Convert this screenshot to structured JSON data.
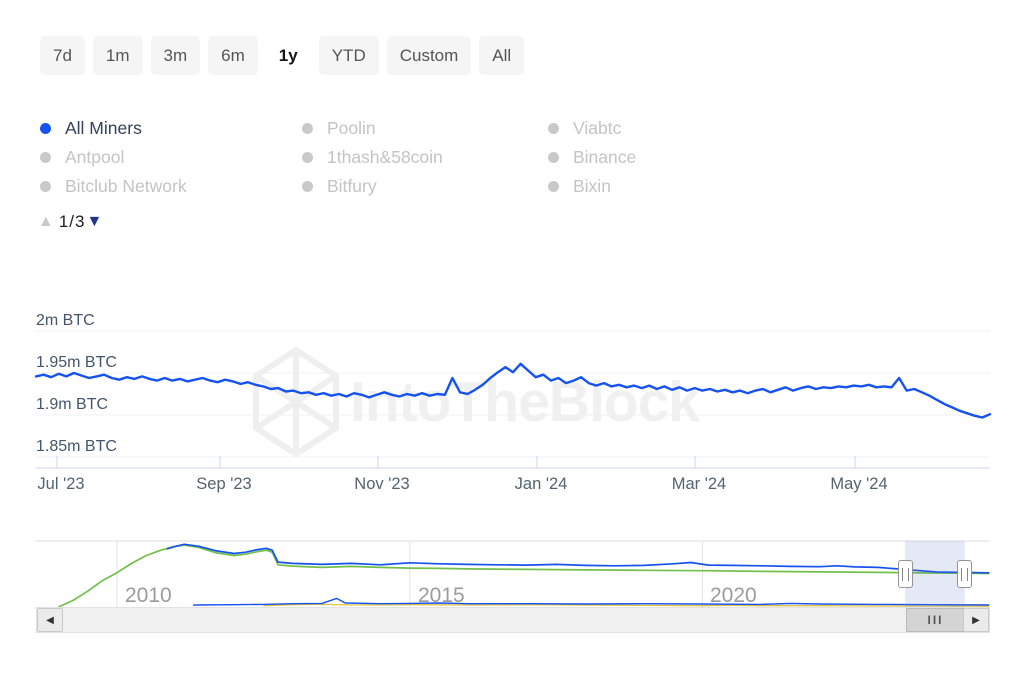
{
  "time_ranges": {
    "items": [
      {
        "label": "7d",
        "selected": false
      },
      {
        "label": "1m",
        "selected": false
      },
      {
        "label": "3m",
        "selected": false
      },
      {
        "label": "6m",
        "selected": false
      },
      {
        "label": "1y",
        "selected": true
      },
      {
        "label": "YTD",
        "selected": false
      },
      {
        "label": "Custom",
        "selected": false
      },
      {
        "label": "All",
        "selected": false
      }
    ]
  },
  "legend": {
    "page_indicator": "1/3",
    "items": [
      {
        "label": "All Miners",
        "active": true
      },
      {
        "label": "Poolin",
        "active": false
      },
      {
        "label": "Viabtc",
        "active": false
      },
      {
        "label": "Antpool",
        "active": false
      },
      {
        "label": "1thash&58coin",
        "active": false
      },
      {
        "label": "Binance",
        "active": false
      },
      {
        "label": "Bitclub Network",
        "active": false
      },
      {
        "label": "Bitfury",
        "active": false
      },
      {
        "label": "Bixin",
        "active": false
      }
    ]
  },
  "icons": {
    "page_up": "▲",
    "page_down": "▼",
    "scroll_left": "◀",
    "scroll_right": "▶",
    "thumb_grip": "III"
  },
  "watermark": {
    "text": "IntoTheBlock"
  },
  "colors": {
    "accent_blue": "#1652f0",
    "nav_green": "#72bf4b",
    "nav_yellow": "#e0c040",
    "inactive_gray": "#c9c9c9",
    "selection_fill": "rgba(105,134,197,0.18)",
    "gridline": "#eef0f3",
    "axis_line": "#ccd6eb"
  },
  "chart_data": [
    {
      "type": "line",
      "id": "main-chart",
      "unit": "m BTC",
      "ytick_labels": [
        "2m BTC",
        "1.95m BTC",
        "1.9m BTC",
        "1.85m BTC"
      ],
      "ytick_values": [
        2.0,
        1.95,
        1.9,
        1.85
      ],
      "ylim": [
        1.843,
        2.013
      ],
      "xtick_labels": [
        "Jul '23",
        "Sep '23",
        "Nov '23",
        "Jan '24",
        "Mar '24",
        "May '24"
      ],
      "grid": "horizontal",
      "legend_position": "top-left",
      "series": [
        {
          "name": "All Miners",
          "color": "#1652f0",
          "values": [
            1.946,
            1.948,
            1.945,
            1.949,
            1.946,
            1.95,
            1.947,
            1.944,
            1.946,
            1.948,
            1.944,
            1.942,
            1.945,
            1.943,
            1.946,
            1.943,
            1.941,
            1.944,
            1.941,
            1.943,
            1.94,
            1.942,
            1.944,
            1.941,
            1.939,
            1.942,
            1.94,
            1.937,
            1.939,
            1.936,
            1.934,
            1.931,
            1.932,
            1.928,
            1.929,
            1.926,
            1.927,
            1.924,
            1.926,
            1.923,
            1.925,
            1.922,
            1.926,
            1.924,
            1.921,
            1.924,
            1.927,
            1.924,
            1.922,
            1.925,
            1.923,
            1.926,
            1.923,
            1.925,
            1.924,
            1.944,
            1.927,
            1.925,
            1.93,
            1.936,
            1.944,
            1.951,
            1.957,
            1.951,
            1.961,
            1.953,
            1.945,
            1.948,
            1.941,
            1.944,
            1.938,
            1.941,
            1.945,
            1.938,
            1.935,
            1.938,
            1.934,
            1.936,
            1.933,
            1.935,
            1.932,
            1.935,
            1.931,
            1.934,
            1.93,
            1.933,
            1.929,
            1.932,
            1.929,
            1.931,
            1.928,
            1.93,
            1.927,
            1.929,
            1.926,
            1.929,
            1.931,
            1.927,
            1.93,
            1.933,
            1.929,
            1.932,
            1.934,
            1.931,
            1.933,
            1.932,
            1.934,
            1.933,
            1.935,
            1.934,
            1.936,
            1.933,
            1.934,
            1.933,
            1.944,
            1.929,
            1.931,
            1.927,
            1.923,
            1.918,
            1.913,
            1.909,
            1.905,
            1.902,
            1.899,
            1.897,
            1.901
          ]
        }
      ]
    },
    {
      "type": "line",
      "id": "navigator",
      "xtick_labels": [
        "2010",
        "2015",
        "2020"
      ],
      "x_unit": "year",
      "y_unit": "fraction_of_navigator_height",
      "selection": {
        "start_year": 2023.46,
        "end_year": 2024.48
      },
      "series": [
        {
          "name": "history-green",
          "color": "#72bf4b",
          "points": [
            [
              2009.0,
              0.0
            ],
            [
              2009.25,
              0.1
            ],
            [
              2009.5,
              0.24
            ],
            [
              2009.75,
              0.4
            ],
            [
              2010.0,
              0.52
            ],
            [
              2010.25,
              0.66
            ],
            [
              2010.5,
              0.78
            ],
            [
              2010.75,
              0.86
            ],
            [
              2010.95,
              0.91
            ],
            [
              2011.15,
              0.94
            ],
            [
              2011.4,
              0.9
            ],
            [
              2011.7,
              0.82
            ],
            [
              2012.0,
              0.78
            ],
            [
              2012.2,
              0.8
            ],
            [
              2012.4,
              0.84
            ],
            [
              2012.55,
              0.86
            ],
            [
              2012.65,
              0.83
            ],
            [
              2012.75,
              0.64
            ],
            [
              2013.0,
              0.62
            ],
            [
              2013.5,
              0.6
            ],
            [
              2014.0,
              0.615
            ],
            [
              2014.5,
              0.6
            ],
            [
              2015.0,
              0.59
            ],
            [
              2015.5,
              0.585
            ],
            [
              2016.0,
              0.578
            ],
            [
              2017.0,
              0.57
            ],
            [
              2018.0,
              0.562
            ],
            [
              2019.0,
              0.556
            ],
            [
              2020.0,
              0.55
            ],
            [
              2021.0,
              0.54
            ],
            [
              2022.0,
              0.532
            ],
            [
              2023.0,
              0.524
            ],
            [
              2024.0,
              0.515
            ],
            [
              2024.9,
              0.508
            ]
          ]
        },
        {
          "name": "history-blue",
          "color": "#1652f0",
          "points": [
            [
              2010.85,
              0.88
            ],
            [
              2011.0,
              0.92
            ],
            [
              2011.15,
              0.95
            ],
            [
              2011.4,
              0.92
            ],
            [
              2011.7,
              0.85
            ],
            [
              2012.0,
              0.81
            ],
            [
              2012.2,
              0.83
            ],
            [
              2012.4,
              0.87
            ],
            [
              2012.55,
              0.89
            ],
            [
              2012.65,
              0.86
            ],
            [
              2012.75,
              0.68
            ],
            [
              2013.0,
              0.66
            ],
            [
              2013.5,
              0.645
            ],
            [
              2014.0,
              0.66
            ],
            [
              2014.5,
              0.64
            ],
            [
              2015.0,
              0.67
            ],
            [
              2015.5,
              0.655
            ],
            [
              2016.0,
              0.645
            ],
            [
              2016.5,
              0.64
            ],
            [
              2017.0,
              0.635
            ],
            [
              2017.5,
              0.645
            ],
            [
              2018.0,
              0.63
            ],
            [
              2018.5,
              0.625
            ],
            [
              2019.0,
              0.63
            ],
            [
              2019.5,
              0.655
            ],
            [
              2019.8,
              0.675
            ],
            [
              2020.1,
              0.635
            ],
            [
              2020.5,
              0.63
            ],
            [
              2021.0,
              0.625
            ],
            [
              2021.5,
              0.615
            ],
            [
              2022.0,
              0.61
            ],
            [
              2022.3,
              0.625
            ],
            [
              2022.6,
              0.608
            ],
            [
              2023.0,
              0.6
            ],
            [
              2023.5,
              0.565
            ],
            [
              2024.0,
              0.53
            ],
            [
              2024.9,
              0.518
            ]
          ]
        },
        {
          "name": "small-miners-yellow",
          "color": "#e0c040",
          "points": [
            [
              2012.5,
              0.02
            ],
            [
              2013.0,
              0.035
            ],
            [
              2013.5,
              0.04
            ],
            [
              2014.0,
              0.03
            ],
            [
              2015.0,
              0.035
            ],
            [
              2016.0,
              0.03
            ],
            [
              2017.0,
              0.035
            ],
            [
              2018.0,
              0.03
            ],
            [
              2019.0,
              0.025
            ],
            [
              2020.0,
              0.02
            ],
            [
              2020.5,
              0.025
            ],
            [
              2021.0,
              0.02
            ],
            [
              2022.0,
              0.02
            ],
            [
              2023.0,
              0.015
            ],
            [
              2024.0,
              0.015
            ],
            [
              2024.9,
              0.012
            ]
          ]
        },
        {
          "name": "small-miners-blue",
          "color": "#1652f0",
          "points": [
            [
              2011.3,
              0.03
            ],
            [
              2012.0,
              0.035
            ],
            [
              2012.5,
              0.04
            ],
            [
              2013.0,
              0.05
            ],
            [
              2013.5,
              0.055
            ],
            [
              2013.75,
              0.13
            ],
            [
              2013.9,
              0.06
            ],
            [
              2014.5,
              0.05
            ],
            [
              2015.0,
              0.055
            ],
            [
              2015.5,
              0.06
            ],
            [
              2016.0,
              0.05
            ],
            [
              2017.0,
              0.05
            ],
            [
              2018.0,
              0.045
            ],
            [
              2019.0,
              0.05
            ],
            [
              2020.0,
              0.045
            ],
            [
              2021.0,
              0.04
            ],
            [
              2021.5,
              0.055
            ],
            [
              2022.0,
              0.045
            ],
            [
              2023.0,
              0.04
            ],
            [
              2024.0,
              0.035
            ],
            [
              2024.9,
              0.03
            ]
          ]
        }
      ]
    }
  ]
}
